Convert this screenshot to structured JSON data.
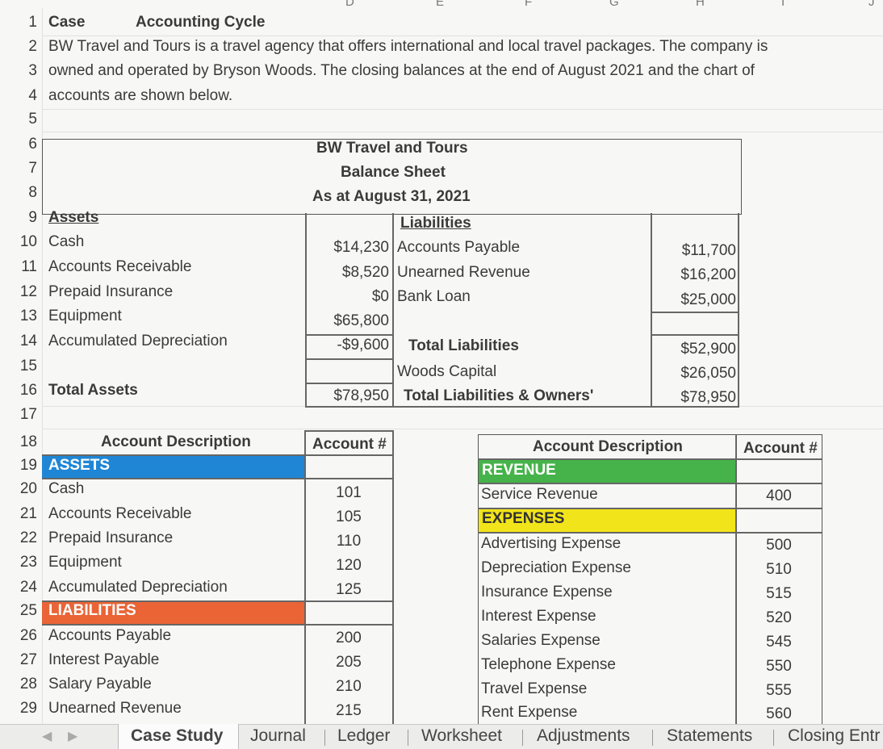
{
  "column_headers": [
    "D",
    "E",
    "F",
    "G",
    "H",
    "I",
    "J"
  ],
  "row_numbers": [
    "1",
    "2",
    "3",
    "4",
    "5",
    "6",
    "7",
    "8",
    "9",
    "10",
    "11",
    "12",
    "13",
    "14",
    "15",
    "16",
    "17",
    "18",
    "19",
    "20",
    "21",
    "22",
    "23",
    "24",
    "25",
    "26",
    "27",
    "28",
    "29"
  ],
  "case": {
    "label": "Case",
    "title": "Accounting Cycle",
    "line1": "BW Travel and Tours is a travel agency that offers international and local travel packages. The company is",
    "line2": "owned and operated by Bryson Woods. The closing balances at the end of August 2021 and the chart of",
    "line3": "accounts are shown below."
  },
  "balance_sheet": {
    "company": "BW Travel and Tours",
    "title": "Balance Sheet",
    "date": "As at August 31, 2021",
    "assets_heading": "Assets",
    "liabilities_heading": "Liabilities",
    "assets": [
      {
        "name": "Cash",
        "value": "$14,230"
      },
      {
        "name": "Accounts Receivable",
        "value": "$8,520"
      },
      {
        "name": "Prepaid Insurance",
        "value": "$0"
      },
      {
        "name": "Equipment",
        "value": "$65,800"
      },
      {
        "name": "Accumulated Depreciation",
        "value": "-$9,600"
      }
    ],
    "liabilities": [
      {
        "name": "Accounts Payable",
        "value": "$11,700"
      },
      {
        "name": "Unearned Revenue",
        "value": "$16,200"
      },
      {
        "name": "Bank Loan",
        "value": "$25,000"
      }
    ],
    "total_liabilities_label": "Total Liabilities",
    "total_liabilities_value": "$52,900",
    "capital_label": "Woods Capital",
    "capital_value": "$26,050",
    "total_assets_label": "Total Assets",
    "total_assets_value": "$78,950",
    "total_le_label": "Total Liabilities & Owners'",
    "total_le_value": "$78,950"
  },
  "chart_left": {
    "desc_header": "Account Description",
    "num_header": "Account #",
    "assets_label": "ASSETS",
    "liabilities_label": "LIABILITIES",
    "assets": [
      {
        "name": "Cash",
        "num": "101"
      },
      {
        "name": "Accounts Receivable",
        "num": "105"
      },
      {
        "name": "Prepaid Insurance",
        "num": "110"
      },
      {
        "name": "Equipment",
        "num": "120"
      },
      {
        "name": "Accumulated Depreciation",
        "num": "125"
      }
    ],
    "liabilities": [
      {
        "name": "Accounts Payable",
        "num": "200"
      },
      {
        "name": "Interest Payable",
        "num": "205"
      },
      {
        "name": "Salary Payable",
        "num": "210"
      },
      {
        "name": "Unearned Revenue",
        "num": "215"
      }
    ]
  },
  "chart_right": {
    "desc_header": "Account Description",
    "num_header": "Account #",
    "revenue_label": "REVENUE",
    "expenses_label": "EXPENSES",
    "revenue": [
      {
        "name": "Service Revenue",
        "num": "400"
      }
    ],
    "expenses": [
      {
        "name": "Advertising Expense",
        "num": "500"
      },
      {
        "name": "Depreciation Expense",
        "num": "510"
      },
      {
        "name": "Insurance Expense",
        "num": "515"
      },
      {
        "name": "Interest Expense",
        "num": "520"
      },
      {
        "name": "Salaries Expense",
        "num": "545"
      },
      {
        "name": "Telephone Expense",
        "num": "550"
      },
      {
        "name": "Travel Expense",
        "num": "555"
      },
      {
        "name": "Rent Expense",
        "num": "560"
      }
    ]
  },
  "sheet_tabs": [
    "Case Study",
    "Journal",
    "Ledger",
    "Worksheet",
    "Adjustments",
    "Statements",
    "Closing Entr"
  ],
  "active_tab": "Case Study",
  "colors": {
    "assets_fill": "#1f86d6",
    "liabilities_fill": "#ea6436",
    "revenue_fill": "#45b349",
    "expenses_fill": "#f2e41a"
  }
}
